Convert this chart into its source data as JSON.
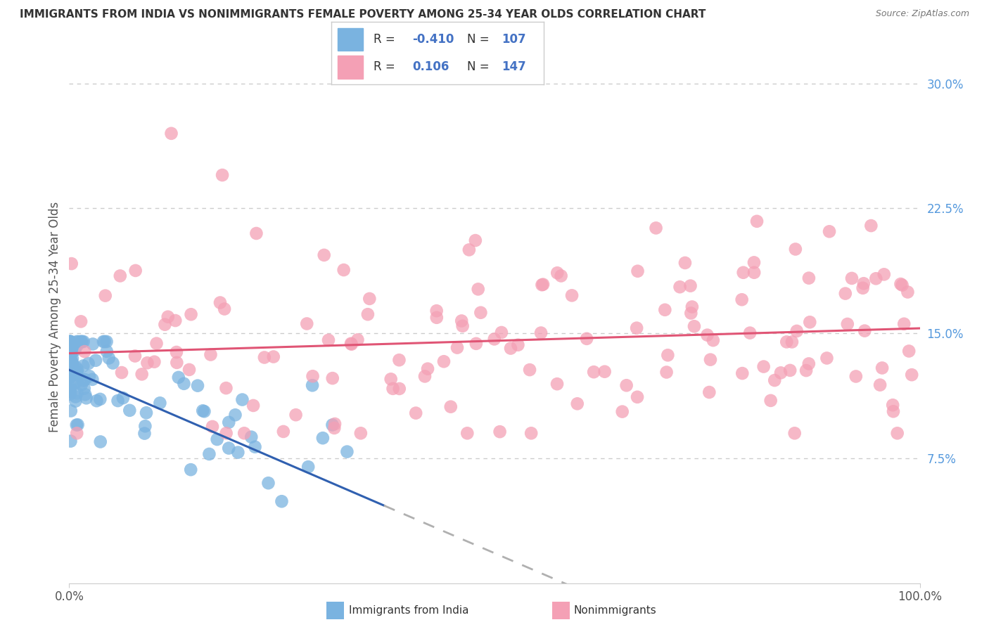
{
  "title": "IMMIGRANTS FROM INDIA VS NONIMMIGRANTS FEMALE POVERTY AMONG 25-34 YEAR OLDS CORRELATION CHART",
  "source": "Source: ZipAtlas.com",
  "ylabel": "Female Poverty Among 25-34 Year Olds",
  "xlim": [
    0,
    1.0
  ],
  "ylim": [
    0,
    0.32
  ],
  "ytick_vals": [
    0.075,
    0.15,
    0.225,
    0.3
  ],
  "ytick_labels": [
    "7.5%",
    "15.0%",
    "22.5%",
    "30.0%"
  ],
  "xtick_vals": [
    0.0,
    1.0
  ],
  "xtick_labels": [
    "0.0%",
    "100.0%"
  ],
  "color_blue": "#7ab3e0",
  "color_pink": "#f4a0b5",
  "color_blue_line": "#3060b0",
  "color_pink_line": "#e05575",
  "color_title": "#333333",
  "color_source": "#777777",
  "color_legend_vals": "#4472c4",
  "background_color": "#ffffff",
  "grid_color": "#cccccc",
  "legend_blue_r": "-0.410",
  "legend_blue_n": "107",
  "legend_pink_r": "0.106",
  "legend_pink_n": "147"
}
